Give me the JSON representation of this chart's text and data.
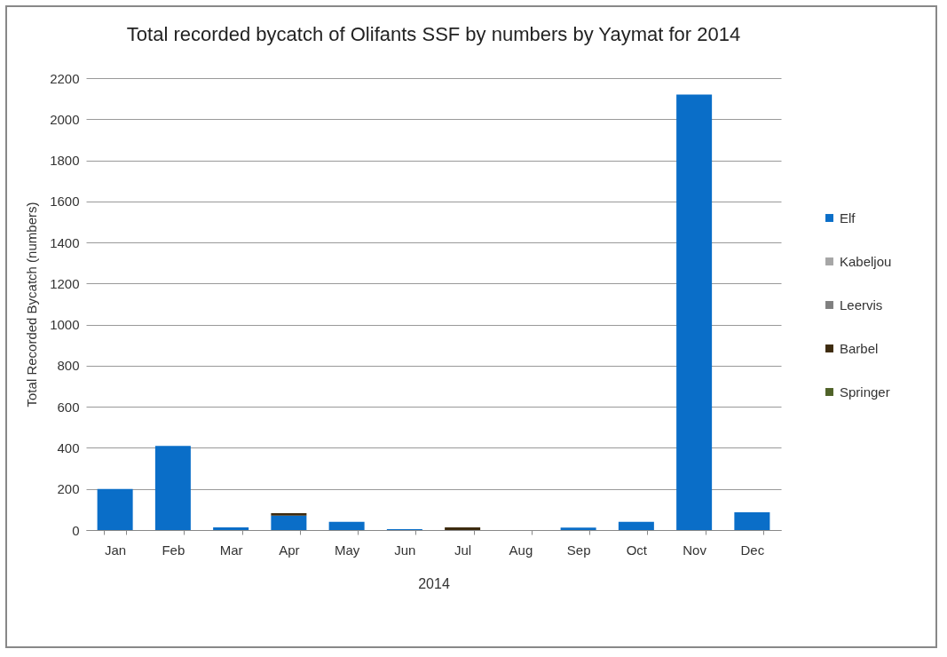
{
  "chart_data": {
    "type": "bar",
    "stacked": true,
    "title": "Total recorded bycatch of Olifants SSF by numbers by Yaymat for 2014",
    "xlabel": "2014",
    "ylabel": "Total Recorded Bycatch (numbers)",
    "categories": [
      "Jan",
      "Feb",
      "Mar",
      "Apr",
      "May",
      "Jun",
      "Jul",
      "Aug",
      "Sep",
      "Oct",
      "Nov",
      "Dec"
    ],
    "series": [
      {
        "name": "Elf",
        "color": "#0a6ec8",
        "values": [
          200,
          410,
          13,
          70,
          40,
          4,
          0,
          0,
          12,
          40,
          2120,
          86
        ]
      },
      {
        "name": "Kabeljou",
        "color": "#a6a6a6",
        "values": [
          0,
          0,
          0,
          0,
          0,
          0,
          0,
          0,
          0,
          0,
          0,
          0
        ]
      },
      {
        "name": "Leervis",
        "color": "#7f7f7f",
        "values": [
          0,
          0,
          0,
          0,
          0,
          0,
          0,
          0,
          0,
          0,
          0,
          0
        ]
      },
      {
        "name": "Barbel",
        "color": "#3d2b0f",
        "values": [
          0,
          0,
          0,
          12,
          0,
          0,
          13,
          0,
          0,
          0,
          0,
          0
        ]
      },
      {
        "name": "Springer",
        "color": "#4f6228",
        "values": [
          0,
          0,
          0,
          0,
          0,
          0,
          0,
          0,
          0,
          0,
          0,
          0
        ]
      }
    ],
    "ylim": [
      0,
      2200
    ],
    "yticks": [
      0,
      200,
      400,
      600,
      800,
      1000,
      1200,
      1400,
      1600,
      1800,
      2000,
      2200
    ],
    "grid": "y",
    "legend": "right"
  }
}
